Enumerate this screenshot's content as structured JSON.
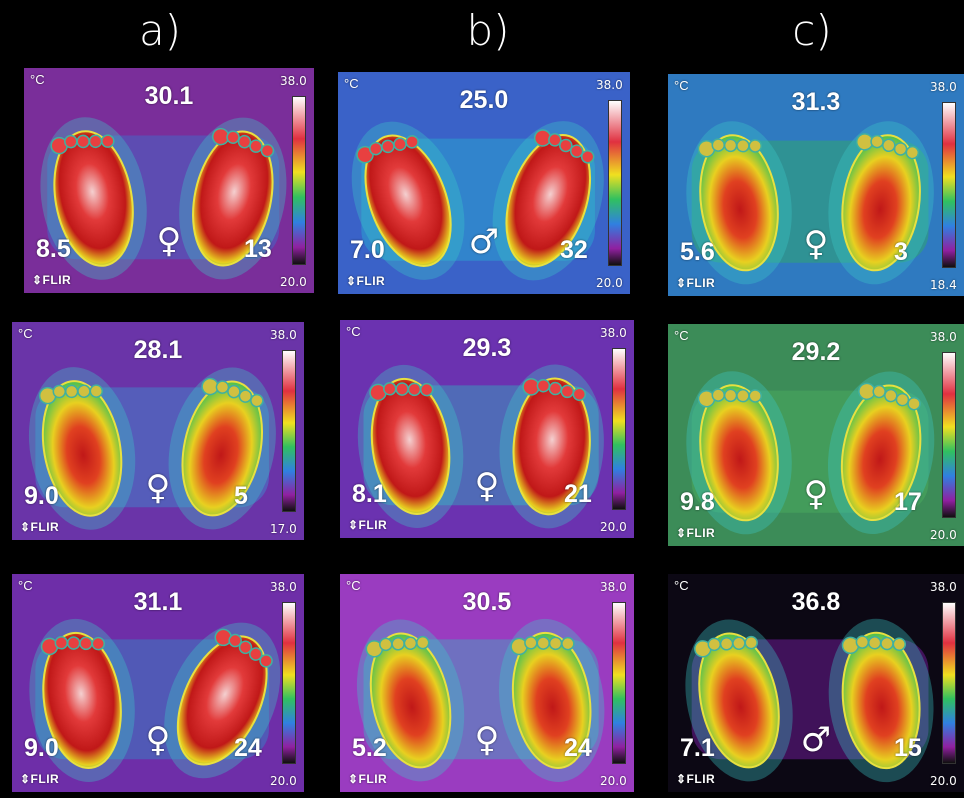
{
  "column_labels": [
    "a)",
    "b)",
    "c)"
  ],
  "panels": [
    {
      "unit": "°C",
      "center": "30.1",
      "left": "8.5",
      "right": "13",
      "scale_max": "38.0",
      "scale_min": "20.0",
      "sex": "♀",
      "brand": "⇕FLIR"
    },
    {
      "unit": "°C",
      "center": "25.0",
      "left": "7.0",
      "right": "32",
      "scale_max": "38.0",
      "scale_min": "20.0",
      "sex": "♂",
      "brand": "⇕FLIR"
    },
    {
      "unit": "°C",
      "center": "31.3",
      "left": "5.6",
      "right": "3",
      "scale_max": "38.0",
      "scale_min": "18.4",
      "sex": "♀",
      "brand": "⇕FLIR"
    },
    {
      "unit": "°C",
      "center": "28.1",
      "left": "9.0",
      "right": "5",
      "scale_max": "38.0",
      "scale_min": "17.0",
      "sex": "♀",
      "brand": "⇕FLIR"
    },
    {
      "unit": "°C",
      "center": "29.3",
      "left": "8.1",
      "right": "21",
      "scale_max": "38.0",
      "scale_min": "20.0",
      "sex": "♀",
      "brand": "⇕FLIR"
    },
    {
      "unit": "°C",
      "center": "29.2",
      "left": "9.8",
      "right": "17",
      "scale_max": "38.0",
      "scale_min": "20.0",
      "sex": "♀",
      "brand": "⇕FLIR"
    },
    {
      "unit": "°C",
      "center": "31.1",
      "left": "9.0",
      "right": "24",
      "scale_max": "38.0",
      "scale_min": "20.0",
      "sex": "♀",
      "brand": "⇕FLIR"
    },
    {
      "unit": "°C",
      "center": "30.5",
      "left": "5.2",
      "right": "24",
      "scale_max": "38.0",
      "scale_min": "20.0",
      "sex": "♀",
      "brand": "⇕FLIR"
    },
    {
      "unit": "°C",
      "center": "36.8",
      "left": "7.1",
      "right": "15",
      "scale_max": "38.0",
      "scale_min": "20.0",
      "sex": "♂",
      "brand": "⇕FLIR"
    }
  ],
  "colors": {
    "background": "#000000",
    "text": "#ffffff"
  }
}
